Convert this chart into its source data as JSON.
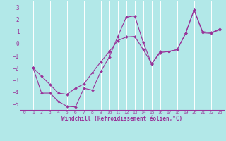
{
  "xlabel": "Windchill (Refroidissement éolien,°C)",
  "bg_color": "#b2e8e8",
  "grid_color": "#ffffff",
  "line_color": "#993399",
  "xlim": [
    -0.5,
    23.5
  ],
  "ylim": [
    -5.5,
    3.5
  ],
  "yticks": [
    -5,
    -4,
    -3,
    -2,
    -1,
    0,
    1,
    2,
    3
  ],
  "xticks": [
    0,
    1,
    2,
    3,
    4,
    5,
    6,
    7,
    8,
    9,
    10,
    11,
    12,
    13,
    14,
    15,
    16,
    17,
    18,
    19,
    20,
    21,
    22,
    23
  ],
  "line1_x": [
    1,
    2,
    3,
    4,
    5,
    6,
    7,
    8,
    9,
    10,
    11,
    12,
    13,
    14,
    15,
    16,
    17,
    18,
    19,
    20,
    21,
    22,
    23
  ],
  "line1_y": [
    -2.0,
    -4.1,
    -4.1,
    -4.8,
    -5.2,
    -5.25,
    -3.7,
    -3.85,
    -2.3,
    -1.1,
    0.6,
    2.2,
    2.3,
    0.1,
    -1.7,
    -0.65,
    -0.65,
    -0.5,
    0.85,
    2.8,
    1.0,
    0.9,
    1.2
  ],
  "line2_x": [
    1,
    2,
    3,
    4,
    5,
    6,
    7,
    8,
    9,
    10,
    11,
    12,
    13,
    14,
    15,
    16,
    17,
    18,
    19,
    20,
    21,
    22,
    23
  ],
  "line2_y": [
    -2.0,
    -2.7,
    -3.4,
    -4.1,
    -4.2,
    -3.7,
    -3.35,
    -2.4,
    -1.5,
    -0.65,
    0.25,
    0.55,
    0.6,
    -0.5,
    -1.65,
    -0.75,
    -0.65,
    -0.5,
    0.85,
    2.8,
    0.9,
    0.85,
    1.15
  ]
}
